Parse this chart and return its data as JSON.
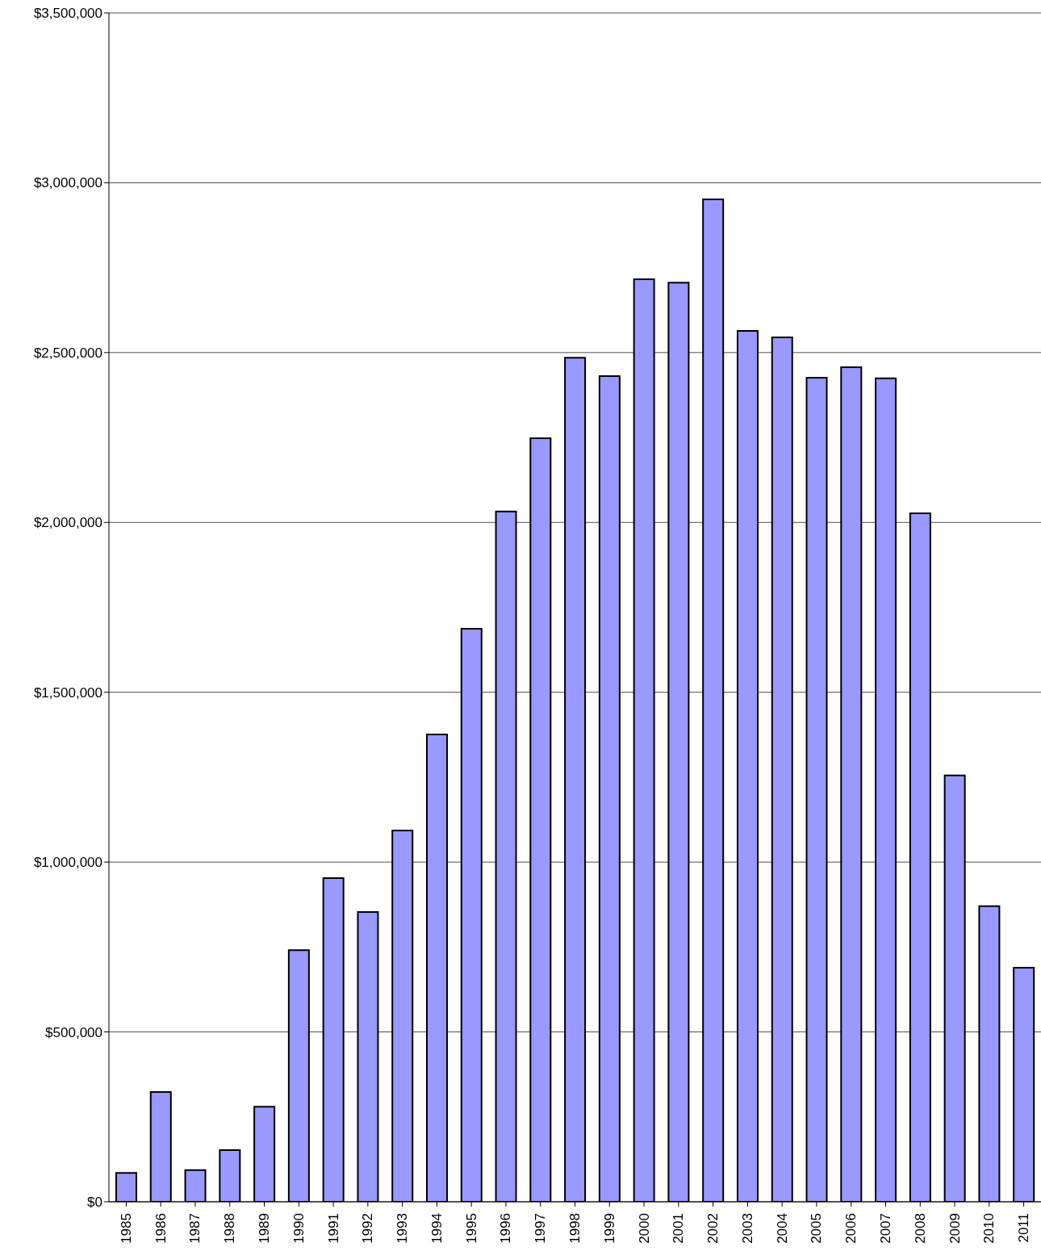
{
  "chart_data": {
    "type": "bar",
    "categories": [
      "1985",
      "1986",
      "1987",
      "1988",
      "1989",
      "1990",
      "1991",
      "1992",
      "1993",
      "1994",
      "1995",
      "1996",
      "1997",
      "1998",
      "1999",
      "2000",
      "2001",
      "2002",
      "2003",
      "2004",
      "2005",
      "2006",
      "2007",
      "2008",
      "2009",
      "2010",
      "2011"
    ],
    "values": [
      85000,
      323000,
      93000,
      152000,
      280000,
      741000,
      953000,
      853000,
      1093000,
      1376000,
      1687000,
      2032000,
      2248000,
      2485000,
      2431000,
      2716000,
      2706000,
      2951000,
      2564000,
      2545000,
      2426000,
      2457000,
      2424000,
      2027000,
      1255000,
      870000,
      689000
    ],
    "color": "#9999ff",
    "ylim": [
      0,
      3500000
    ],
    "yticks": [
      {
        "value": 0,
        "label": "$0"
      },
      {
        "value": 500000,
        "label": "$500,000"
      },
      {
        "value": 1000000,
        "label": "$1,000,000"
      },
      {
        "value": 1500000,
        "label": "$1,500,000"
      },
      {
        "value": 2000000,
        "label": "$2,000,000"
      },
      {
        "value": 2500000,
        "label": "$2,500,000"
      },
      {
        "value": 3000000,
        "label": "$3,000,000"
      },
      {
        "value": 3500000,
        "label": "$3,500,000"
      }
    ],
    "grid": "y"
  }
}
